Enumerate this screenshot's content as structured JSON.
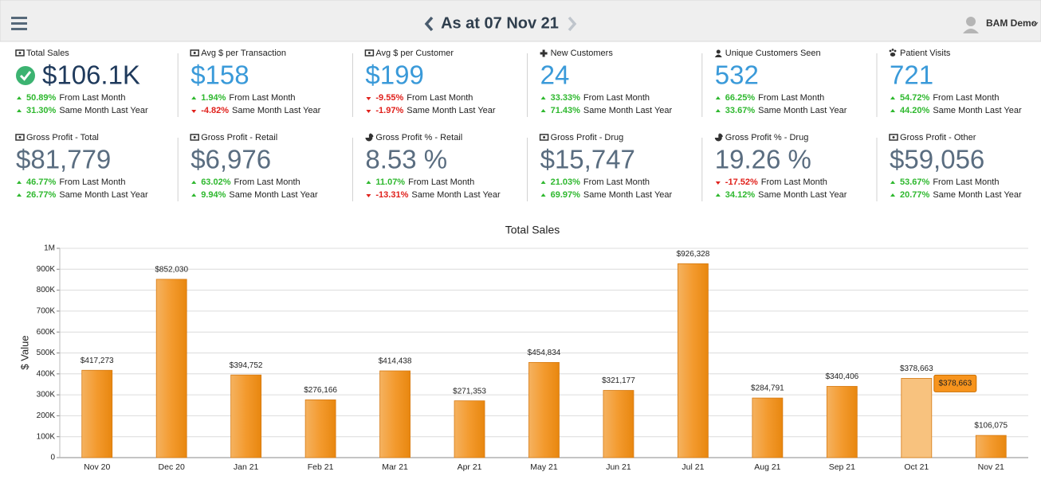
{
  "header": {
    "title": "As at 07 Nov 21",
    "user": "BAM Demo"
  },
  "kpis": [
    {
      "label": "Total Sales",
      "value": "$106.1K",
      "icon": "money",
      "check": true,
      "color": "#1f3a5c",
      "changes": [
        {
          "value": "50.89%",
          "text": "From Last Month",
          "direction": "up"
        },
        {
          "value": "31.30%",
          "text": "Same Month Last Year",
          "direction": "up"
        }
      ]
    },
    {
      "label": "Avg $ per Transaction",
      "value": "$158",
      "icon": "money",
      "color": "#3a9ad9",
      "changes": [
        {
          "value": "1.94%",
          "text": "From Last Month",
          "direction": "up"
        },
        {
          "value": "-4.82%",
          "text": "Same Month Last Year",
          "direction": "down"
        }
      ]
    },
    {
      "label": "Avg $ per Customer",
      "value": "$199",
      "icon": "money",
      "color": "#3a9ad9",
      "changes": [
        {
          "value": "-9.55%",
          "text": "From Last Month",
          "direction": "down"
        },
        {
          "value": "-1.97%",
          "text": "Same Month Last Year",
          "direction": "down"
        }
      ]
    },
    {
      "label": "New Customers",
      "value": "24",
      "icon": "plus",
      "color": "#3a9ad9",
      "changes": [
        {
          "value": "33.33%",
          "text": "From Last Month",
          "direction": "up"
        },
        {
          "value": "71.43%",
          "text": "Same Month Last Year",
          "direction": "up"
        }
      ]
    },
    {
      "label": "Unique Customers Seen",
      "value": "532",
      "icon": "user",
      "color": "#3a9ad9",
      "changes": [
        {
          "value": "66.25%",
          "text": "From Last Month",
          "direction": "up"
        },
        {
          "value": "33.67%",
          "text": "Same Month Last Year",
          "direction": "up"
        }
      ]
    },
    {
      "label": "Patient Visits",
      "value": "721",
      "icon": "paw",
      "color": "#3a9ad9",
      "changes": [
        {
          "value": "54.72%",
          "text": "From Last Month",
          "direction": "up"
        },
        {
          "value": "44.20%",
          "text": "Same Month Last Year",
          "direction": "up"
        }
      ]
    },
    {
      "label": "Gross Profit - Total",
      "value": "$81,779",
      "icon": "money",
      "color": "#5a6d80",
      "changes": [
        {
          "value": "46.77%",
          "text": "From Last Month",
          "direction": "up"
        },
        {
          "value": "26.77%",
          "text": "Same Month Last Year",
          "direction": "up"
        }
      ]
    },
    {
      "label": "Gross Profit - Retail",
      "value": "$6,976",
      "icon": "money",
      "color": "#5a6d80",
      "changes": [
        {
          "value": "63.02%",
          "text": "From Last Month",
          "direction": "up"
        },
        {
          "value": "9.94%",
          "text": "Same Month Last Year",
          "direction": "up"
        }
      ]
    },
    {
      "label": "Gross Profit % - Retail",
      "value": "8.53 %",
      "icon": "pie",
      "color": "#5a6d80",
      "changes": [
        {
          "value": "11.07%",
          "text": "From Last Month",
          "direction": "up"
        },
        {
          "value": "-13.31%",
          "text": "Same Month Last Year",
          "direction": "down"
        }
      ]
    },
    {
      "label": "Gross Profit - Drug",
      "value": "$15,747",
      "icon": "money",
      "color": "#5a6d80",
      "changes": [
        {
          "value": "21.03%",
          "text": "From Last Month",
          "direction": "up"
        },
        {
          "value": "69.97%",
          "text": "Same Month Last Year",
          "direction": "up"
        }
      ]
    },
    {
      "label": "Gross Profit % - Drug",
      "value": "19.26 %",
      "icon": "pie",
      "color": "#5a6d80",
      "changes": [
        {
          "value": "-17.52%",
          "text": "From Last Month",
          "direction": "down"
        },
        {
          "value": "34.12%",
          "text": "Same Month Last Year",
          "direction": "up"
        }
      ]
    },
    {
      "label": "Gross Profit - Other",
      "value": "$59,056",
      "icon": "money",
      "color": "#5a6d80",
      "changes": [
        {
          "value": "53.67%",
          "text": "From Last Month",
          "direction": "up"
        },
        {
          "value": "20.77%",
          "text": "Same Month Last Year",
          "direction": "up"
        }
      ]
    }
  ],
  "chart_data": {
    "type": "bar",
    "title": "Total Sales",
    "y_label": "$ Value",
    "categories": [
      "Nov 20",
      "Dec 20",
      "Jan 21",
      "Feb 21",
      "Mar 21",
      "Apr 21",
      "May 21",
      "Jun 21",
      "Jul 21",
      "Aug 21",
      "Sep 21",
      "Oct 21",
      "Nov 21"
    ],
    "values": [
      417273,
      852030,
      394752,
      276166,
      414438,
      271353,
      454834,
      321177,
      926328,
      284791,
      340406,
      378663,
      106075
    ],
    "value_labels": [
      "$417,273",
      "$852,030",
      "$394,752",
      "$276,166",
      "$414,438",
      "$271,353",
      "$454,834",
      "$321,177",
      "$926,328",
      "$284,791",
      "$340,406",
      "$378,663",
      "$106,075"
    ],
    "color": "#f39a2e",
    "hover_index": 11,
    "ylim": [
      0,
      1000000
    ],
    "yticks": [
      0,
      {
        "value": 100000,
        "label": "100K"
      },
      {
        "value": 200000,
        "label": "200K"
      },
      {
        "value": 300000,
        "label": "300K"
      },
      {
        "value": 400000,
        "label": "400K"
      },
      {
        "value": 500000,
        "label": "500K"
      },
      {
        "value": 600000,
        "label": "600K"
      },
      {
        "value": 700000,
        "label": "700K"
      },
      {
        "value": 800000,
        "label": "800K"
      },
      {
        "value": 900000,
        "label": "900K"
      },
      {
        "value": 1000000,
        "label": "1M"
      }
    ],
    "grid": true
  }
}
